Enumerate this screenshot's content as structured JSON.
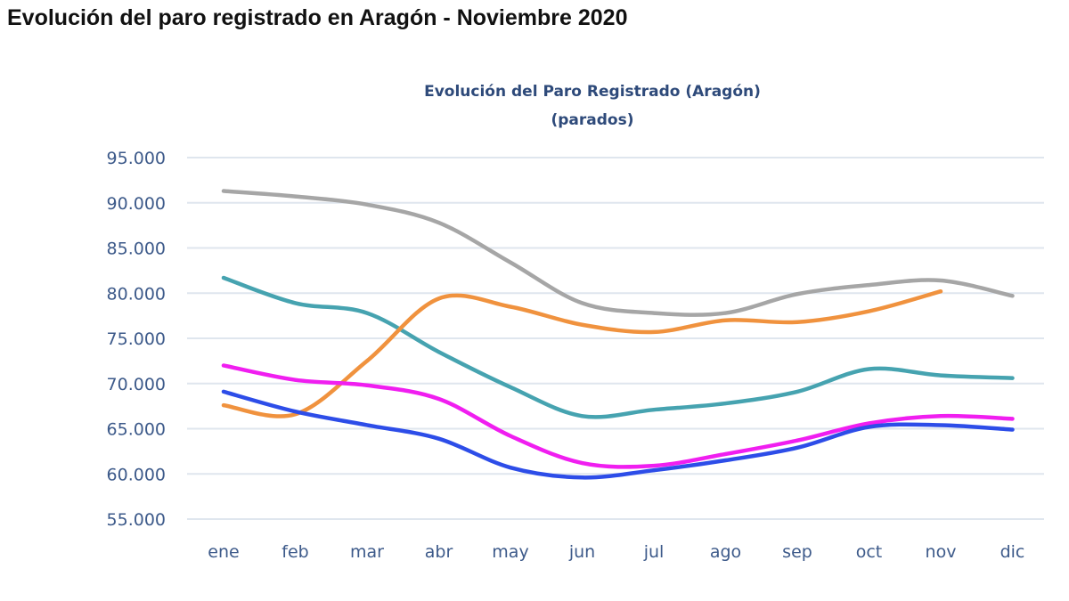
{
  "page_title": "Evolución del paro registrado en Aragón - Noviembre 2020",
  "chart_data": {
    "type": "line",
    "title": "Evolución del Paro Registrado (Aragón)",
    "subtitle": "(parados)",
    "categories": [
      "ene",
      "feb",
      "mar",
      "abr",
      "may",
      "jun",
      "jul",
      "ago",
      "sep",
      "oct",
      "nov",
      "dic"
    ],
    "ylim": [
      55000,
      95000
    ],
    "yticks": [
      95000,
      90000,
      85000,
      80000,
      75000,
      70000,
      65000,
      60000,
      55000
    ],
    "ytick_labels": [
      "95.000",
      "90.000",
      "85.000",
      "80.000",
      "75.000",
      "70.000",
      "65.000",
      "60.000",
      "55.000"
    ],
    "grid": true,
    "smooth": true,
    "series": [
      {
        "color": "#a6a6a6",
        "values": [
          91300,
          90700,
          89800,
          87800,
          83400,
          78900,
          77800,
          77800,
          79900,
          80900,
          81400,
          79700
        ]
      },
      {
        "color": "#46a3b0",
        "values": [
          81700,
          78900,
          77800,
          73500,
          69600,
          66400,
          67100,
          67800,
          69100,
          71600,
          70900,
          70600
        ]
      },
      {
        "color": "#f0923e",
        "values": [
          67600,
          66600,
          72500,
          79400,
          78500,
          76500,
          75700,
          77000,
          76800,
          78000,
          80200,
          null
        ]
      },
      {
        "color": "#f01ef0",
        "values": [
          72000,
          70400,
          69800,
          68300,
          64200,
          61200,
          60900,
          62200,
          63700,
          65600,
          66400,
          66100
        ]
      },
      {
        "color": "#2d4de8",
        "values": [
          69100,
          66900,
          65400,
          63900,
          60700,
          59600,
          60400,
          61500,
          62900,
          65200,
          65400,
          64900
        ]
      }
    ]
  }
}
